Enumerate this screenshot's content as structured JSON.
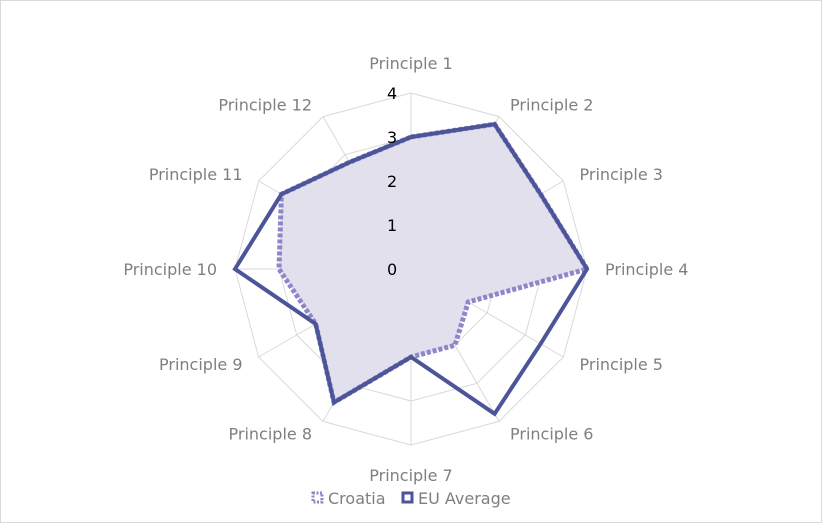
{
  "chart_data": {
    "type": "radar",
    "title": "",
    "categories": [
      "Principle 1",
      "Principle 2",
      "Principle 3",
      "Principle 4",
      "Principle 5",
      "Principle 6",
      "Principle 7",
      "Principle 8",
      "Principle 9",
      "Principle 10",
      "Principle 11",
      "Principle 12"
    ],
    "rlim": [
      0,
      4
    ],
    "ticks": [
      "0",
      "1",
      "2",
      "3",
      "4"
    ],
    "grid": true,
    "legend_position": "bottom",
    "series": [
      {
        "name": "Croatia",
        "values": [
          3.0,
          3.8,
          3.4,
          4.0,
          1.5,
          2.0,
          2.0,
          3.5,
          2.5,
          3.0,
          3.4,
          2.8
        ],
        "color": "#8e86c8",
        "fill": "#e3e0ee",
        "style": "dotted"
      },
      {
        "name": "EU Average",
        "values": [
          3.0,
          3.8,
          3.4,
          4.0,
          3.4,
          3.8,
          2.0,
          3.5,
          2.5,
          4.0,
          3.4,
          2.8
        ],
        "color": "#4c5599",
        "style": "solid"
      }
    ]
  }
}
